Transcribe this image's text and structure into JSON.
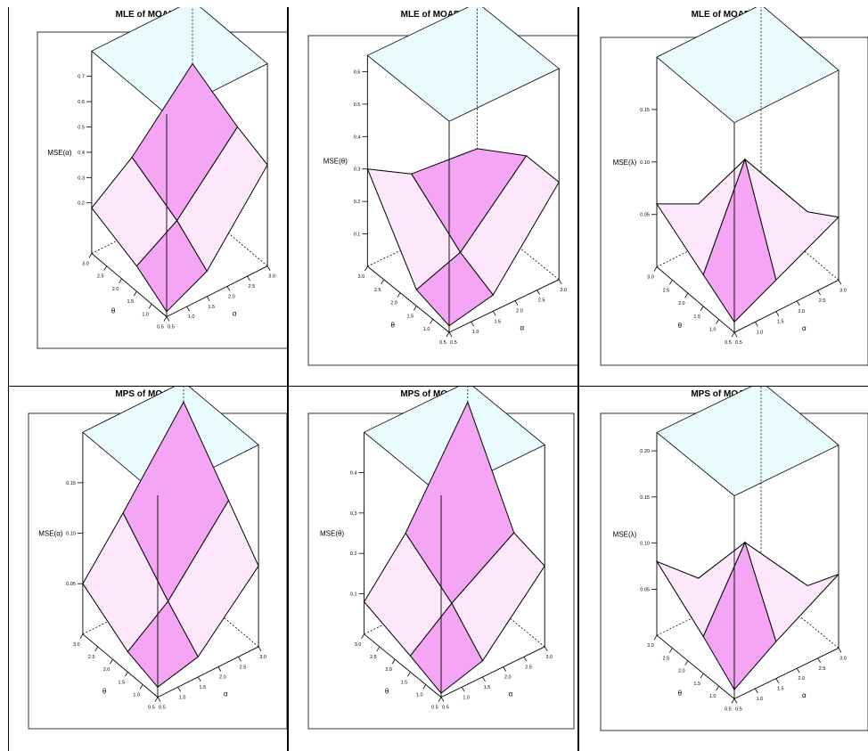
{
  "colors": {
    "top_face": "#e9fbfc",
    "surface_pink": "#f4a6f4",
    "surface_pale": "#fde7fb",
    "axis": "#000000"
  },
  "chart_data": [
    {
      "type": "surface3d",
      "title": "MLE of MOAPP",
      "zlabel": "MSE(α)",
      "xlabel": "α",
      "ylabel": "θ",
      "x": [
        0.5,
        1.5,
        3.0
      ],
      "y": [
        0.5,
        1.5,
        3.0
      ],
      "z": [
        [
          0.02,
          0.1,
          0.4
        ],
        [
          0.1,
          0.2,
          0.45
        ],
        [
          0.18,
          0.3,
          0.55
        ]
      ],
      "zlim": [
        0,
        0.8
      ],
      "zticks": [
        "0.2",
        "0.3",
        "0.4",
        "0.5",
        "0.6",
        "0.7"
      ],
      "xticks": [
        "0.5",
        "1.0",
        "1.5",
        "2.0",
        "2.5",
        "3.0"
      ],
      "yticks": [
        "3.0",
        "2.5",
        "2.0",
        "1.5",
        "1.0",
        "0.5"
      ]
    },
    {
      "type": "surface3d",
      "title": "MLE of MOAPP",
      "zlabel": "MSE(θ)",
      "xlabel": "α",
      "ylabel": "θ",
      "x": [
        0.5,
        1.5,
        3.0
      ],
      "y": [
        0.5,
        1.5,
        3.0
      ],
      "z": [
        [
          0.02,
          0.05,
          0.3
        ],
        [
          0.05,
          0.1,
          0.3
        ],
        [
          0.3,
          0.22,
          0.2
        ]
      ],
      "zlim": [
        0,
        0.65
      ],
      "zticks": [
        "0.1",
        "0.2",
        "0.3",
        "0.4",
        "0.5",
        "0.6"
      ],
      "xticks": [
        "0.5",
        "1.0",
        "1.5",
        "2.0",
        "2.5",
        "3.0"
      ],
      "yticks": [
        "3.0",
        "2.5",
        "2.0",
        "1.5",
        "1.0",
        "0.5"
      ]
    },
    {
      "type": "surface3d",
      "title": "MLE of MOAPP",
      "zlabel": "MSE(λ)",
      "xlabel": "α",
      "ylabel": "θ",
      "x": [
        0.5,
        1.5,
        3.0
      ],
      "y": [
        0.5,
        1.5,
        3.0
      ],
      "z": [
        [
          0.01,
          0.03,
          0.06
        ],
        [
          0.03,
          0.12,
          0.04
        ],
        [
          0.06,
          0.04,
          0.02
        ]
      ],
      "zlim": [
        0,
        0.2
      ],
      "zticks": [
        "0.05",
        "0.10",
        "0.15"
      ],
      "xticks": [
        "0.5",
        "1.0",
        "1.5",
        "2.0",
        "2.5",
        "3.0"
      ],
      "yticks": [
        "3.0",
        "2.5",
        "2.0",
        "1.5",
        "1.0",
        "0.5"
      ]
    },
    {
      "type": "surface3d",
      "title": "MPS of MOAPP",
      "zlabel": "MSE(α)",
      "xlabel": "α",
      "ylabel": "θ",
      "x": [
        0.5,
        1.5,
        3.0
      ],
      "y": [
        0.5,
        1.5,
        3.0
      ],
      "z": [
        [
          0.01,
          0.02,
          0.08
        ],
        [
          0.02,
          0.05,
          0.12
        ],
        [
          0.05,
          0.1,
          0.18
        ]
      ],
      "zlim": [
        0,
        0.2
      ],
      "zticks": [
        "0.05",
        "0.10",
        "0.15"
      ],
      "xticks": [
        "0.5",
        "1.0",
        "1.5",
        "2.0",
        "2.5",
        "3.0"
      ],
      "yticks": [
        "3.0",
        "2.5",
        "2.0",
        "1.5",
        "1.0",
        "0.5"
      ]
    },
    {
      "type": "surface3d",
      "title": "MPS of MOAPP",
      "zlabel": "MSE(θ)",
      "xlabel": "α",
      "ylabel": "θ",
      "x": [
        0.5,
        1.5,
        3.0
      ],
      "y": [
        0.5,
        1.5,
        3.0
      ],
      "z": [
        [
          0.01,
          0.04,
          0.2
        ],
        [
          0.04,
          0.12,
          0.22
        ],
        [
          0.08,
          0.2,
          0.45
        ]
      ],
      "zlim": [
        0,
        0.5
      ],
      "zticks": [
        "0.1",
        "0.2",
        "0.3",
        "0.4"
      ],
      "xticks": [
        "0.5",
        "1.0",
        "1.5",
        "2.0",
        "2.5",
        "3.0"
      ],
      "yticks": [
        "3.0",
        "2.5",
        "2.0",
        "1.5",
        "1.0",
        "0.5"
      ]
    },
    {
      "type": "surface3d",
      "title": "MPS of MOAPP",
      "zlabel": "MSE(λ)",
      "xlabel": "α",
      "ylabel": "θ",
      "x": [
        0.5,
        1.5,
        3.0
      ],
      "y": [
        0.5,
        1.5,
        3.0
      ],
      "z": [
        [
          0.01,
          0.04,
          0.08
        ],
        [
          0.04,
          0.12,
          0.04
        ],
        [
          0.08,
          0.04,
          0.02
        ]
      ],
      "zlim": [
        0,
        0.22
      ],
      "zticks": [
        "0.05",
        "0.10",
        "0.15",
        "0.20"
      ],
      "xticks": [
        "0.5",
        "1.0",
        "1.5",
        "2.0",
        "2.5",
        "3.0"
      ],
      "yticks": [
        "3.0",
        "2.5",
        "2.0",
        "1.5",
        "1.0",
        "0.5"
      ]
    }
  ]
}
